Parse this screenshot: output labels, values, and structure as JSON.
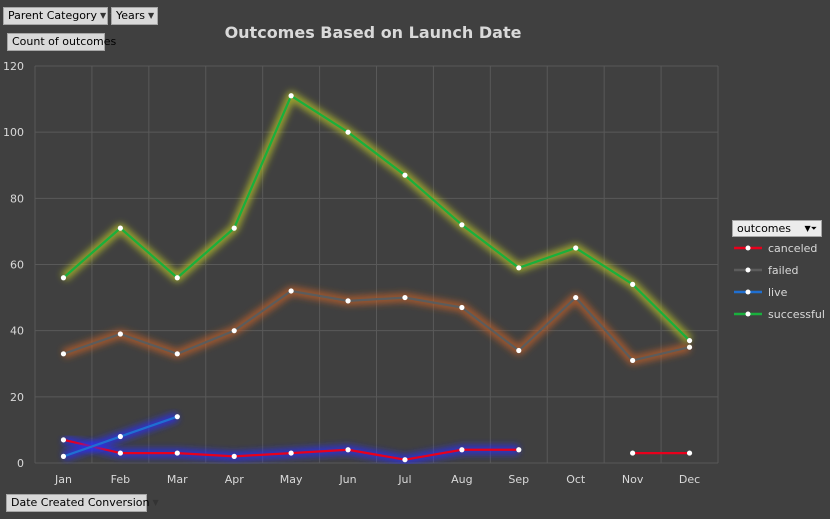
{
  "filters": {
    "parent_category": "Parent Category",
    "years": "Years",
    "count_label": "Count of outcomes",
    "date_created": "Date Created Conversion"
  },
  "legend": {
    "header": "outcomes"
  },
  "chart_data": {
    "type": "line",
    "title": "Outcomes Based on Launch Date",
    "xlabel": "",
    "ylabel": "",
    "categories": [
      "Jan",
      "Feb",
      "Mar",
      "Apr",
      "May",
      "Jun",
      "Jul",
      "Aug",
      "Sep",
      "Oct",
      "Nov",
      "Dec"
    ],
    "ylim": [
      0,
      120
    ],
    "yticks": [
      0,
      20,
      40,
      60,
      80,
      100,
      120
    ],
    "grid": true,
    "legend_position": "right",
    "series": [
      {
        "name": "canceled",
        "color": "#e8001c",
        "glow": "#2a2cff",
        "values": [
          7,
          3,
          3,
          2,
          3,
          4,
          1,
          4,
          4,
          null,
          3,
          3
        ]
      },
      {
        "name": "failed",
        "color": "#5c5c5c",
        "glow": "#c0602a",
        "values": [
          33,
          39,
          33,
          40,
          52,
          49,
          50,
          47,
          34,
          50,
          31,
          35
        ]
      },
      {
        "name": "live",
        "color": "#1f6fd1",
        "glow": "#2a2cff",
        "values": [
          2,
          8,
          14,
          null,
          null,
          null,
          null,
          null,
          null,
          null,
          null,
          null
        ]
      },
      {
        "name": "successful",
        "color": "#19b03d",
        "glow": "#b5c12a",
        "values": [
          56,
          71,
          56,
          71,
          111,
          100,
          87,
          72,
          59,
          65,
          54,
          37
        ]
      }
    ]
  }
}
